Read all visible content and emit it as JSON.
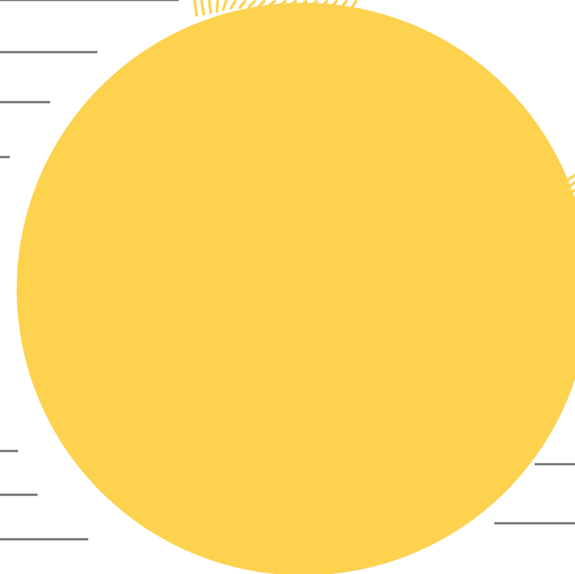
{
  "palette": {
    "background": "#ffffff",
    "sun": "#FDD24F",
    "lines": "#6B6B6B"
  },
  "elements": {
    "circle": "sun-circle",
    "rays": "sun-rays",
    "lines": "horizontal-lines"
  }
}
